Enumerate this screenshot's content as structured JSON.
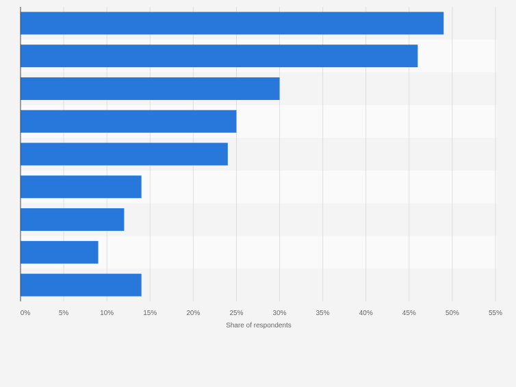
{
  "chart_data": {
    "type": "bar",
    "orientation": "horizontal",
    "categories": [
      "",
      "",
      "",
      "",
      "",
      "",
      "",
      "",
      ""
    ],
    "values": [
      49,
      46,
      30,
      25,
      24,
      14,
      12,
      9,
      14
    ],
    "x_ticks": [
      "0%",
      "5%",
      "10%",
      "15%",
      "20%",
      "25%",
      "30%",
      "35%",
      "40%",
      "45%",
      "50%",
      "55%"
    ],
    "xlim": [
      0,
      55
    ],
    "xlabel": "Share of respondents",
    "ylabel": "",
    "title": "",
    "grid": true,
    "colors": {
      "bar": "#2878dc",
      "band_dark": "#f4f4f4",
      "band_light": "#fafafa",
      "gridline": "#dedede",
      "axis": "#444444",
      "tick_text": "#666666"
    }
  }
}
